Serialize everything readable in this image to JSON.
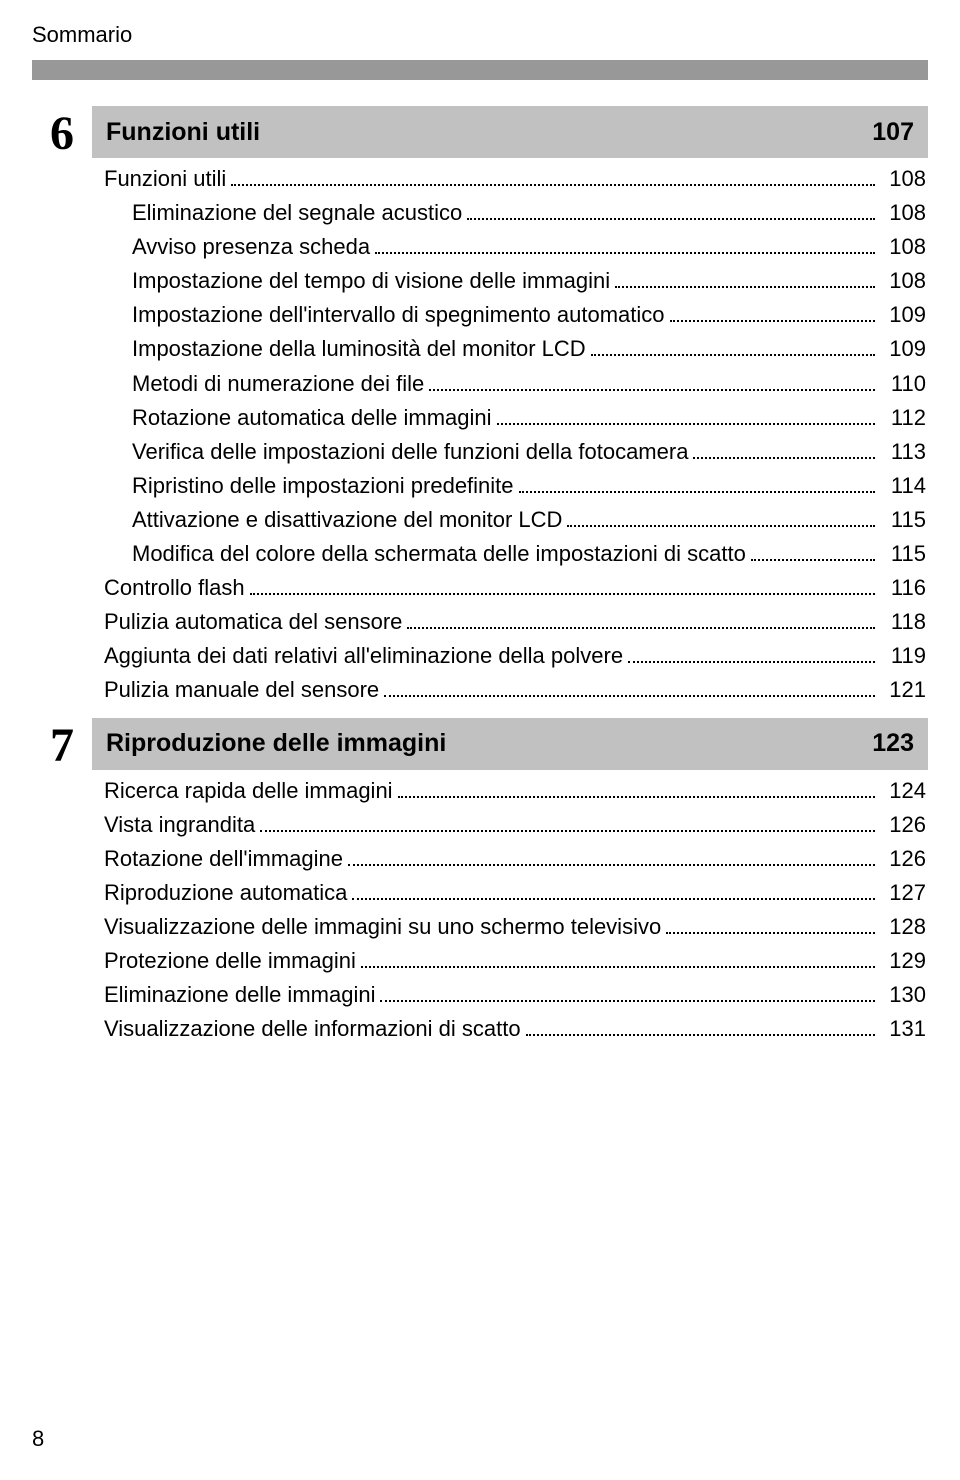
{
  "header": "Sommario",
  "page_number": "8",
  "colors": {
    "background": "#ffffff",
    "header_bar": "#989898",
    "section_bar": "#c1c1c1",
    "text": "#000000"
  },
  "sections": [
    {
      "number": "6",
      "title": "Funzioni utili",
      "page": "107",
      "entries": [
        {
          "level": 0,
          "label": "Funzioni utili",
          "page": "108"
        },
        {
          "level": 1,
          "label": "Eliminazione del segnale acustico",
          "page": "108"
        },
        {
          "level": 1,
          "label": "Avviso presenza scheda",
          "page": "108"
        },
        {
          "level": 1,
          "label": "Impostazione del tempo di visione delle immagini",
          "page": "108"
        },
        {
          "level": 1,
          "label": "Impostazione dell'intervallo di spegnimento automatico",
          "page": "109"
        },
        {
          "level": 1,
          "label": "Impostazione della luminosità del monitor LCD",
          "page": "109"
        },
        {
          "level": 1,
          "label": "Metodi di numerazione dei file",
          "page": "110"
        },
        {
          "level": 1,
          "label": "Rotazione automatica delle immagini",
          "page": "112"
        },
        {
          "level": 1,
          "label": "Verifica delle impostazioni delle funzioni della fotocamera",
          "page": "113"
        },
        {
          "level": 1,
          "label": "Ripristino delle impostazioni predefinite",
          "page": "114"
        },
        {
          "level": 1,
          "label": "Attivazione e disattivazione del monitor LCD",
          "page": "115"
        },
        {
          "level": 1,
          "label": "Modifica del colore della schermata delle impostazioni di scatto",
          "page": "115"
        },
        {
          "level": 0,
          "label": "Controllo flash",
          "page": "116"
        },
        {
          "level": 0,
          "label": "Pulizia automatica del sensore",
          "page": "118"
        },
        {
          "level": 0,
          "label": "Aggiunta dei dati relativi all'eliminazione della polvere",
          "page": "119"
        },
        {
          "level": 0,
          "label": "Pulizia manuale del sensore",
          "page": "121"
        }
      ]
    },
    {
      "number": "7",
      "title": "Riproduzione delle immagini",
      "page": "123",
      "entries": [
        {
          "level": 0,
          "label": "Ricerca rapida delle immagini",
          "page": "124"
        },
        {
          "level": 0,
          "label": "Vista ingrandita",
          "page": "126"
        },
        {
          "level": 0,
          "label": "Rotazione dell'immagine",
          "page": "126"
        },
        {
          "level": 0,
          "label": "Riproduzione automatica",
          "page": "127"
        },
        {
          "level": 0,
          "label": "Visualizzazione delle immagini su uno schermo televisivo",
          "page": "128"
        },
        {
          "level": 0,
          "label": "Protezione delle immagini",
          "page": "129"
        },
        {
          "level": 0,
          "label": "Eliminazione delle immagini",
          "page": "130"
        },
        {
          "level": 0,
          "label": "Visualizzazione delle informazioni di scatto",
          "page": "131"
        }
      ]
    }
  ]
}
